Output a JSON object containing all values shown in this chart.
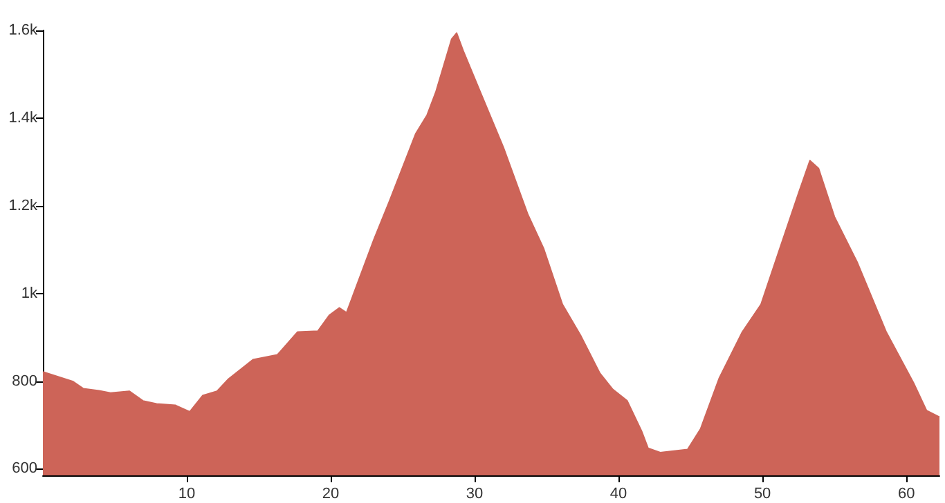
{
  "chart_data": {
    "type": "area",
    "x": [
      0,
      2.1,
      2.8,
      3.9,
      4.7,
      6.0,
      6.95,
      7.9,
      9.2,
      10.2,
      11.1,
      12.1,
      12.9,
      14.6,
      16.3,
      17.7,
      19.1,
      19.9,
      20.6,
      21.1,
      23.0,
      24.1,
      25.9,
      26.7,
      27.3,
      28.4,
      28.75,
      29.2,
      30.4,
      32.0,
      33.7,
      34.8,
      36.1,
      37.4,
      38.7,
      39.6,
      40.6,
      41.6,
      42.05,
      42.9,
      44.8,
      45.7,
      47.0,
      48.6,
      49.9,
      51.2,
      52.5,
      53.3,
      53.9,
      55.0,
      56.6,
      58.6,
      60.5,
      61.4,
      62.3
    ],
    "values": [
      821,
      799,
      783,
      778,
      773,
      777,
      755,
      748,
      745,
      730,
      767,
      777,
      805,
      849,
      860,
      912,
      914,
      950,
      967,
      956,
      1123,
      1212,
      1364,
      1407,
      1459,
      1580,
      1594,
      1554,
      1459,
      1333,
      1180,
      1102,
      975,
      902,
      818,
      781,
      755,
      686,
      647,
      637,
      644,
      691,
      807,
      912,
      975,
      1102,
      1228,
      1303,
      1285,
      1175,
      1070,
      912,
      796,
      733,
      718
    ],
    "color": "#cd6458",
    "xlim": [
      0,
      62.3
    ],
    "xticks": [
      10,
      20,
      30,
      40,
      50,
      60
    ],
    "ylim": [
      585,
      1600
    ],
    "yticks": [
      600,
      800,
      {
        "value": 1000,
        "label": "1k"
      },
      {
        "value": 1200,
        "label": "1.2k"
      },
      {
        "value": 1400,
        "label": "1.4k"
      },
      {
        "value": 1600,
        "label": "1.6k"
      }
    ],
    "grid": false
  }
}
